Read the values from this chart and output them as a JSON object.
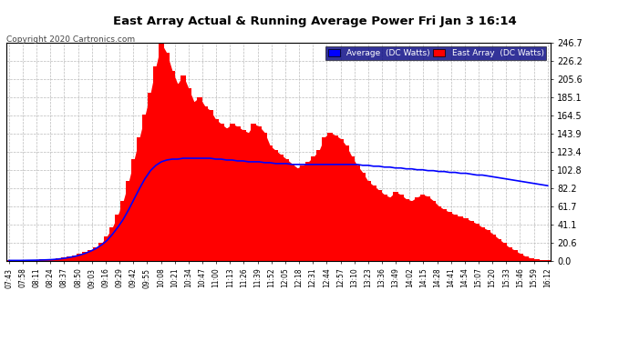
{
  "title": "East Array Actual & Running Average Power Fri Jan 3 16:14",
  "copyright": "Copyright 2020 Cartronics.com",
  "ymax": 246.7,
  "yticks": [
    0.0,
    20.6,
    41.1,
    61.7,
    82.2,
    102.8,
    123.4,
    143.9,
    164.5,
    185.1,
    205.6,
    226.2,
    246.7
  ],
  "background_color": "#ffffff",
  "plot_bg_color": "#ffffff",
  "bar_color": "#ff0000",
  "avg_line_color": "#0000ff",
  "grid_color": "#bbbbbb",
  "title_color": "#000000",
  "xtick_labels": [
    "07:43",
    "07:58",
    "08:11",
    "08:24",
    "08:37",
    "08:50",
    "09:03",
    "09:16",
    "09:29",
    "09:42",
    "09:55",
    "10:08",
    "10:21",
    "10:34",
    "10:47",
    "11:00",
    "11:13",
    "11:26",
    "11:39",
    "11:52",
    "12:05",
    "12:18",
    "12:31",
    "12:44",
    "12:57",
    "13:10",
    "13:23",
    "13:36",
    "13:49",
    "14:02",
    "14:15",
    "14:28",
    "14:41",
    "14:54",
    "15:07",
    "15:20",
    "15:33",
    "15:46",
    "15:59",
    "16:12"
  ],
  "bar_values": [
    0.5,
    0.5,
    0.5,
    1,
    1,
    1,
    1.5,
    2,
    2,
    3,
    4,
    5,
    6,
    8,
    10,
    12,
    15,
    20,
    28,
    38,
    52,
    68,
    90,
    115,
    140,
    165,
    190,
    220,
    246,
    235,
    215,
    200,
    210,
    195,
    180,
    185,
    175,
    170,
    160,
    155,
    150,
    155,
    152,
    148,
    145,
    155,
    152,
    145,
    130,
    125,
    120,
    115,
    110,
    105,
    108,
    112,
    118,
    125,
    140,
    145,
    142,
    138,
    130,
    118,
    108,
    100,
    90,
    85,
    80,
    75,
    72,
    78,
    75,
    70,
    68,
    72,
    75,
    73,
    68,
    62,
    58,
    55,
    52,
    50,
    48,
    45,
    42,
    38,
    35,
    30,
    25,
    20,
    15,
    12,
    8,
    5,
    3,
    2,
    1,
    0.5
  ],
  "avg_values": [
    0.5,
    0.5,
    0.5,
    0.6,
    0.7,
    0.8,
    1.0,
    1.2,
    1.5,
    2.0,
    2.8,
    3.8,
    5.0,
    6.5,
    8.5,
    11,
    14,
    18,
    23,
    30,
    38,
    47,
    58,
    70,
    82,
    93,
    102,
    108,
    112,
    114,
    115,
    115,
    116,
    116,
    116,
    116,
    116,
    116,
    115,
    115,
    114,
    114,
    113,
    113,
    112,
    112,
    112,
    111,
    111,
    110,
    110,
    110,
    109,
    109,
    109,
    109,
    109,
    109,
    109,
    109,
    109,
    109,
    109,
    109,
    109,
    108,
    108,
    107,
    107,
    106,
    106,
    105,
    105,
    104,
    104,
    103,
    103,
    102,
    102,
    101,
    101,
    100,
    100,
    99,
    99,
    98,
    97,
    97,
    96,
    95,
    94,
    93,
    92,
    91,
    90,
    89,
    88,
    87,
    86,
    85
  ]
}
